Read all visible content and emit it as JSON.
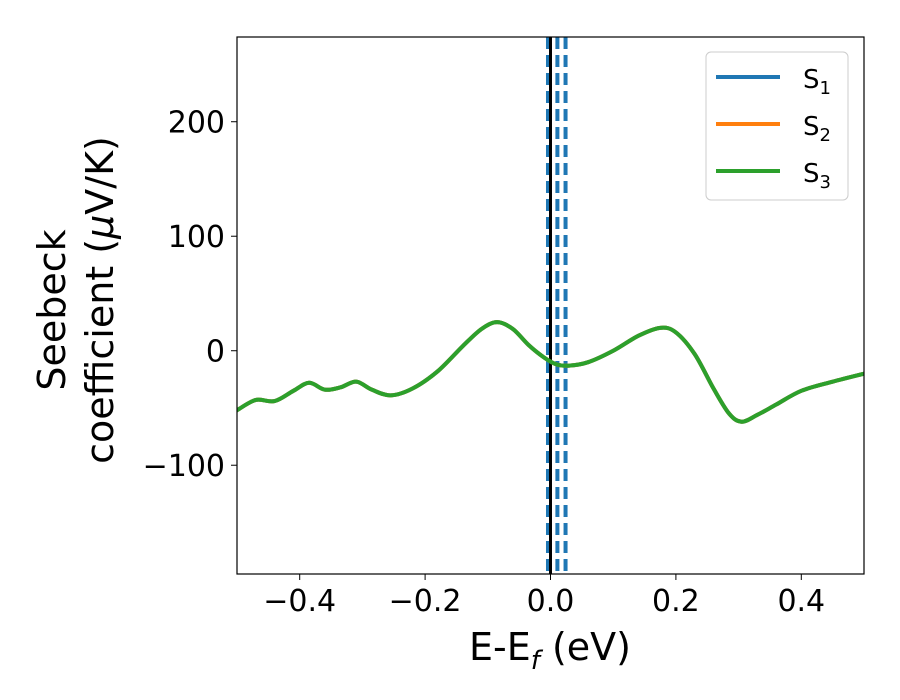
{
  "chart_data": {
    "type": "line",
    "title": "",
    "xlabel": "E-E",
    "xlabel_sub": "f",
    "xlabel_unit": " (eV)",
    "ylabel_line1": "Seebeck",
    "ylabel_line2_prefix": "coefficient  (",
    "ylabel_mu": "μ",
    "ylabel_line2_suffix": "V/K)",
    "xlim": [
      -0.5,
      0.5
    ],
    "ylim": [
      -195,
      274
    ],
    "x_ticks": [
      -0.4,
      -0.2,
      0.0,
      0.2,
      0.4
    ],
    "x_tick_labels": [
      "−0.4",
      "−0.2",
      "0.0",
      "0.2",
      "0.4"
    ],
    "y_ticks": [
      -100,
      0,
      100,
      200
    ],
    "y_tick_labels": [
      "−100",
      "0",
      "100",
      "200"
    ],
    "grid": false,
    "legend_position": "upper right",
    "series": [
      {
        "name": "S",
        "name_sub": "1",
        "color": "#1f77b4",
        "x": [
          -0.5,
          -0.47,
          -0.44,
          -0.41,
          -0.385,
          -0.36,
          -0.335,
          -0.31,
          -0.285,
          -0.255,
          -0.22,
          -0.18,
          -0.14,
          -0.11,
          -0.085,
          -0.06,
          -0.035,
          -0.01,
          0.01,
          0.03,
          0.06,
          0.1,
          0.14,
          0.175,
          0.2,
          0.23,
          0.26,
          0.285,
          0.305,
          0.33,
          0.36,
          0.4,
          0.45,
          0.5
        ],
        "values": [
          -52,
          -43,
          -44,
          -35,
          -28,
          -34,
          -32,
          -27,
          -34,
          -39,
          -33,
          -18,
          4,
          19,
          25,
          19,
          5,
          -6,
          -12,
          -13,
          -10,
          0,
          13,
          20,
          16,
          -3,
          -33,
          -55,
          -62,
          -56,
          -47,
          -35,
          -27,
          -20
        ]
      },
      {
        "name": "S",
        "name_sub": "2",
        "color": "#ff7f0e",
        "x": [
          -0.5,
          -0.47,
          -0.44,
          -0.41,
          -0.385,
          -0.36,
          -0.335,
          -0.31,
          -0.285,
          -0.255,
          -0.22,
          -0.18,
          -0.14,
          -0.11,
          -0.085,
          -0.06,
          -0.035,
          -0.01,
          0.01,
          0.03,
          0.06,
          0.1,
          0.14,
          0.175,
          0.2,
          0.23,
          0.26,
          0.285,
          0.305,
          0.33,
          0.36,
          0.4,
          0.45,
          0.5
        ],
        "values": [
          -52,
          -43,
          -44,
          -35,
          -28,
          -34,
          -32,
          -27,
          -34,
          -39,
          -33,
          -18,
          4,
          19,
          25,
          19,
          5,
          -6,
          -12,
          -13,
          -10,
          0,
          13,
          20,
          16,
          -3,
          -33,
          -55,
          -62,
          -56,
          -47,
          -35,
          -27,
          -20
        ]
      },
      {
        "name": "S",
        "name_sub": "3",
        "color": "#2ca02c",
        "x": [
          -0.5,
          -0.47,
          -0.44,
          -0.41,
          -0.385,
          -0.36,
          -0.335,
          -0.31,
          -0.285,
          -0.255,
          -0.22,
          -0.18,
          -0.14,
          -0.11,
          -0.085,
          -0.06,
          -0.035,
          -0.01,
          0.01,
          0.03,
          0.06,
          0.1,
          0.14,
          0.175,
          0.2,
          0.23,
          0.26,
          0.285,
          0.305,
          0.33,
          0.36,
          0.4,
          0.45,
          0.5
        ],
        "values": [
          -52,
          -43,
          -44,
          -35,
          -28,
          -34,
          -32,
          -27,
          -34,
          -39,
          -33,
          -18,
          4,
          19,
          25,
          19,
          5,
          -6,
          -12,
          -13,
          -10,
          0,
          13,
          20,
          16,
          -3,
          -33,
          -55,
          -62,
          -56,
          -47,
          -35,
          -27,
          -20
        ]
      }
    ],
    "vertical_lines": [
      {
        "x": 0.0,
        "color": "#000000",
        "style": "solid"
      },
      {
        "x": -0.004,
        "color": "#1f77b4",
        "style": "dashed"
      },
      {
        "x": 0.011,
        "color": "#1f77b4",
        "style": "dashed"
      },
      {
        "x": 0.024,
        "color": "#1f77b4",
        "style": "dashed"
      }
    ]
  }
}
